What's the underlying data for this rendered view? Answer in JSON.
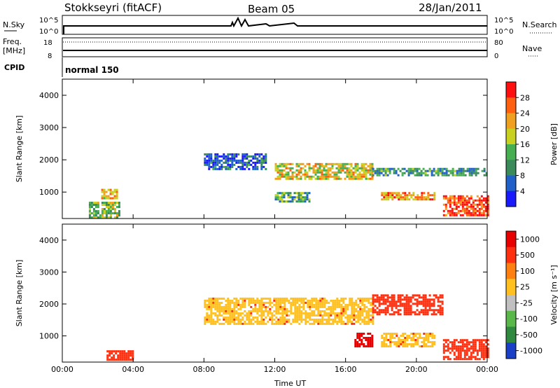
{
  "header": {
    "station": "Stokkseyri (fitACF)",
    "beam": "Beam 05",
    "date": "28/Jan/2011"
  },
  "strips": {
    "nsky_label": "N.Sky",
    "nsky_ticks": [
      "10^5",
      "10^0"
    ],
    "nsearch_label": "N.Search",
    "nsearch_ticks": [
      "10^5",
      "10^0"
    ],
    "freq_label": "Freq.",
    "freq_unit": "[MHz]",
    "freq_ticks": [
      "18",
      "8"
    ],
    "nave_label": "Nave",
    "nave_ticks": [
      "80",
      "0"
    ],
    "cpid_label": "CPID",
    "cpid_value": "normal 150"
  },
  "chart_data": [
    {
      "type": "heatmap",
      "panel": "power",
      "ylabel": "Slant Range [km]",
      "xlabel": "",
      "x_ticks": [
        "00:00",
        "04:00",
        "08:00",
        "12:00",
        "16:00",
        "20:00",
        "00:00"
      ],
      "y_ticks": [
        "1000",
        "2000",
        "3000",
        "4000"
      ],
      "ylim": [
        180,
        4500
      ],
      "xlim_hours": [
        0,
        24
      ],
      "colorbar": {
        "label": "Power [dB]",
        "ticks": [
          "4",
          "8",
          "12",
          "16",
          "20",
          "24",
          "28"
        ],
        "range": [
          0,
          30
        ],
        "colors": [
          "#1a1aff",
          "#2060c8",
          "#3a8a5a",
          "#46b050",
          "#c8d020",
          "#f0a020",
          "#ff6010",
          "#ff1010"
        ]
      },
      "regions": [
        {
          "t0": 1.5,
          "t1": 3.2,
          "r0": 220,
          "r1": 700,
          "value": 14
        },
        {
          "t0": 2.2,
          "t1": 3.1,
          "r0": 800,
          "r1": 1100,
          "value": 20
        },
        {
          "t0": 8.0,
          "t1": 11.5,
          "r0": 1700,
          "r1": 2200,
          "value": 6
        },
        {
          "t0": 12.0,
          "t1": 17.5,
          "r0": 1400,
          "r1": 1900,
          "value": 18
        },
        {
          "t0": 17.5,
          "t1": 24.0,
          "r0": 1550,
          "r1": 1750,
          "value": 10
        },
        {
          "t0": 18.0,
          "t1": 21.0,
          "r0": 800,
          "r1": 1000,
          "value": 22
        },
        {
          "t0": 21.5,
          "t1": 24.0,
          "r0": 300,
          "r1": 900,
          "value": 26
        },
        {
          "t0": 12.0,
          "t1": 14.0,
          "r0": 700,
          "r1": 1000,
          "value": 12
        }
      ]
    },
    {
      "type": "heatmap",
      "panel": "velocity",
      "ylabel": "Slant Range [km]",
      "xlabel": "Time UT",
      "x_ticks": [
        "00:00",
        "04:00",
        "08:00",
        "12:00",
        "16:00",
        "20:00",
        "00:00"
      ],
      "y_ticks": [
        "1000",
        "2000",
        "3000",
        "4000"
      ],
      "ylim": [
        180,
        4500
      ],
      "xlim_hours": [
        0,
        24
      ],
      "colorbar": {
        "label": "Velocity [m s⁻¹]",
        "ticks": [
          "1000",
          "500",
          "100",
          "25",
          "-25",
          "-100",
          "-500",
          "-1000"
        ],
        "colors": [
          "#1a40c8",
          "#2f8a40",
          "#5ab84a",
          "#c0c0c0",
          "#ffc020",
          "#ff8010",
          "#ff3010",
          "#e80000"
        ]
      },
      "regions": [
        {
          "t0": 8.0,
          "t1": 17.5,
          "r0": 1400,
          "r1": 2200,
          "value": 0
        },
        {
          "t0": 17.5,
          "t1": 21.5,
          "r0": 1700,
          "r1": 2300,
          "value": -150
        },
        {
          "t0": 18.0,
          "t1": 21.0,
          "r0": 700,
          "r1": 1100,
          "value": 0
        },
        {
          "t0": 21.5,
          "t1": 24.0,
          "r0": 300,
          "r1": 900,
          "value": -150
        },
        {
          "t0": 2.5,
          "t1": 4.0,
          "r0": 250,
          "r1": 550,
          "value": -150
        },
        {
          "t0": 16.5,
          "t1": 17.5,
          "r0": 700,
          "r1": 1100,
          "value": -700
        }
      ]
    }
  ]
}
